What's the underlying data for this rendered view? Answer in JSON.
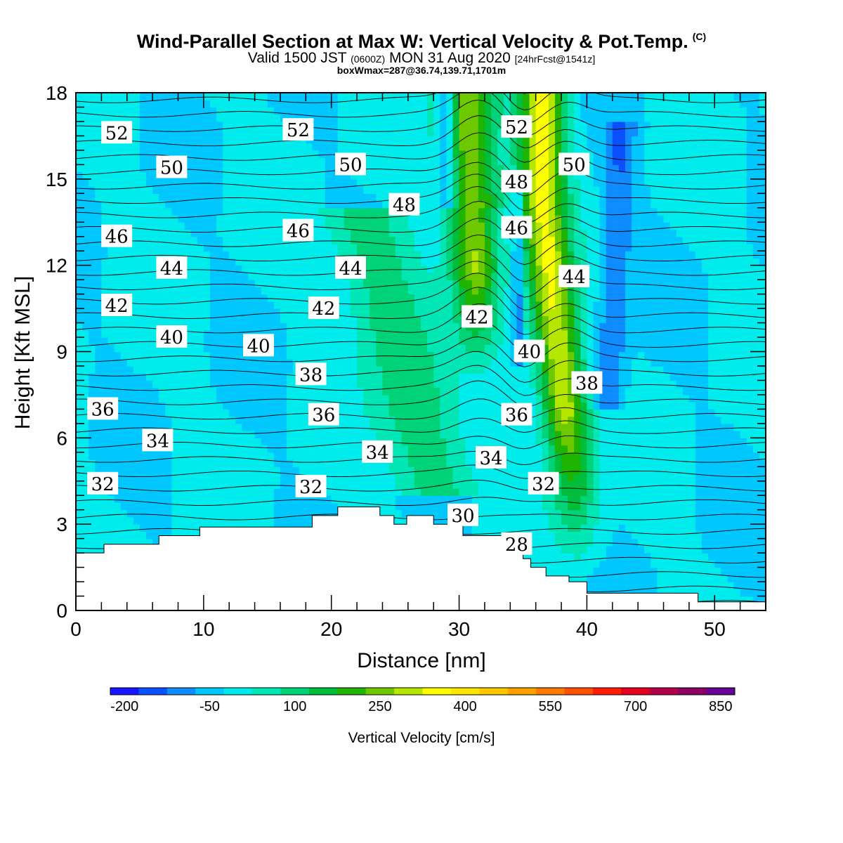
{
  "title": {
    "main": "Wind-Parallel Section at Max W: Vertical Velocity & Pot.Temp.",
    "copyright": "(C)",
    "valid_prefix": "Valid 1500 JST",
    "valid_zulu": "(0600Z)",
    "valid_date": "MON 31 Aug 2020",
    "fcst": "[24hrFcst@1541z]",
    "box": "boxWmax=287@36.74,139.71,1701m"
  },
  "colors": {
    "bands": [
      "#1414ff",
      "#0a50ff",
      "#0f8cff",
      "#00c8ff",
      "#00ebeb",
      "#00e6b4",
      "#00d278",
      "#00be3c",
      "#1eb400",
      "#6ec800",
      "#b4e600",
      "#ffff00",
      "#ffe600",
      "#ffc800",
      "#ffa000",
      "#ff7800",
      "#ff5000",
      "#ff1e00",
      "#e6001e",
      "#b40046",
      "#8c0064",
      "#640096"
    ],
    "terrain": "#ffffff",
    "isentrope": "#000000"
  },
  "chart_data": {
    "type": "heatmap",
    "xlabel": "Distance [nm]",
    "ylabel": "Height [Kft MSL]",
    "xlim": [
      0,
      54
    ],
    "ylim": [
      0,
      18
    ],
    "xticks": [
      "0",
      "10",
      "20",
      "30",
      "40",
      "50"
    ],
    "yticks": [
      "0",
      "3",
      "6",
      "9",
      "12",
      "15",
      "18"
    ],
    "colorbar": {
      "title": "Vertical Velocity [cm/s]",
      "tick_labels": [
        "-200",
        "-50",
        "100",
        "250",
        "400",
        "550",
        "700",
        "850"
      ],
      "range": [
        -225,
        875
      ],
      "band_width": 50
    },
    "vertical_velocity_features": [
      {
        "name": "background",
        "x": 0,
        "w": 0,
        "value": -20
      },
      {
        "name": "core-left",
        "x": 31.5,
        "w": 1.8,
        "value": 300
      },
      {
        "name": "core-right",
        "x": 38.5,
        "w": 1.8,
        "value": 350
      },
      {
        "name": "downdraft-left",
        "x": 29,
        "w": 0.8,
        "value": -180
      },
      {
        "name": "downdraft-mid",
        "x": 34.6,
        "w": 0.4,
        "value": -120
      },
      {
        "name": "downdraft-right",
        "x": 42,
        "w": 1.2,
        "value": -100
      },
      {
        "name": "mid-updraft",
        "x": 26,
        "w": 3,
        "value": 150
      }
    ],
    "terrain_kft": [
      [
        0,
        2
      ],
      [
        2.2,
        2
      ],
      [
        2.2,
        2.3
      ],
      [
        6.5,
        2.3
      ],
      [
        6.5,
        2.6
      ],
      [
        9.7,
        2.6
      ],
      [
        9.7,
        2.9
      ],
      [
        18.5,
        2.9
      ],
      [
        18.5,
        3.3
      ],
      [
        20.5,
        3.3
      ],
      [
        20.5,
        3.6
      ],
      [
        23.8,
        3.6
      ],
      [
        23.8,
        3.3
      ],
      [
        24.9,
        3.3
      ],
      [
        24.9,
        3.0
      ],
      [
        25.9,
        3.0
      ],
      [
        25.9,
        3.3
      ],
      [
        28,
        3.3
      ],
      [
        28,
        3.0
      ],
      [
        30.3,
        3.0
      ],
      [
        30.3,
        2.6
      ],
      [
        34,
        2.6
      ],
      [
        34,
        2.1
      ],
      [
        35,
        2.1
      ],
      [
        35,
        1.8
      ],
      [
        35.6,
        1.8
      ],
      [
        35.6,
        1.5
      ],
      [
        36.8,
        1.5
      ],
      [
        36.8,
        1.2
      ],
      [
        38.6,
        1.2
      ],
      [
        38.6,
        1.0
      ],
      [
        40,
        1.0
      ],
      [
        40,
        0.6
      ],
      [
        48.7,
        0.6
      ],
      [
        48.7,
        0.3
      ],
      [
        54,
        0.3
      ]
    ],
    "isentrope_labels": [
      {
        "text": "52",
        "x": 3.2,
        "y": 16.6
      },
      {
        "text": "52",
        "x": 17.4,
        "y": 16.7
      },
      {
        "text": "52",
        "x": 34.5,
        "y": 16.8
      },
      {
        "text": "50",
        "x": 7.5,
        "y": 15.4
      },
      {
        "text": "50",
        "x": 21.5,
        "y": 15.5
      },
      {
        "text": "50",
        "x": 39,
        "y": 15.5
      },
      {
        "text": "48",
        "x": 25.7,
        "y": 14.1
      },
      {
        "text": "48",
        "x": 34.5,
        "y": 14.9
      },
      {
        "text": "46",
        "x": 3.2,
        "y": 13.0
      },
      {
        "text": "46",
        "x": 17.4,
        "y": 13.2
      },
      {
        "text": "46",
        "x": 34.5,
        "y": 13.3
      },
      {
        "text": "44",
        "x": 7.5,
        "y": 11.9
      },
      {
        "text": "44",
        "x": 21.5,
        "y": 11.9
      },
      {
        "text": "44",
        "x": 39,
        "y": 11.6
      },
      {
        "text": "42",
        "x": 3.2,
        "y": 10.6
      },
      {
        "text": "42",
        "x": 19.4,
        "y": 10.5
      },
      {
        "text": "42",
        "x": 31.4,
        "y": 10.2
      },
      {
        "text": "40",
        "x": 7.5,
        "y": 9.5
      },
      {
        "text": "40",
        "x": 14.3,
        "y": 9.2
      },
      {
        "text": "40",
        "x": 35.5,
        "y": 9.0
      },
      {
        "text": "38",
        "x": 18.4,
        "y": 8.2
      },
      {
        "text": "38",
        "x": 40,
        "y": 7.9
      },
      {
        "text": "36",
        "x": 2.1,
        "y": 7.0
      },
      {
        "text": "36",
        "x": 19.4,
        "y": 6.8
      },
      {
        "text": "36",
        "x": 34.5,
        "y": 6.8
      },
      {
        "text": "34",
        "x": 6.4,
        "y": 5.9
      },
      {
        "text": "34",
        "x": 23.6,
        "y": 5.5
      },
      {
        "text": "34",
        "x": 32.5,
        "y": 5.3
      },
      {
        "text": "32",
        "x": 2.1,
        "y": 4.4
      },
      {
        "text": "32",
        "x": 18.4,
        "y": 4.3
      },
      {
        "text": "32",
        "x": 36.6,
        "y": 4.4
      },
      {
        "text": "30",
        "x": 30.3,
        "y": 3.3
      },
      {
        "text": "28",
        "x": 34.5,
        "y": 2.3
      }
    ]
  }
}
